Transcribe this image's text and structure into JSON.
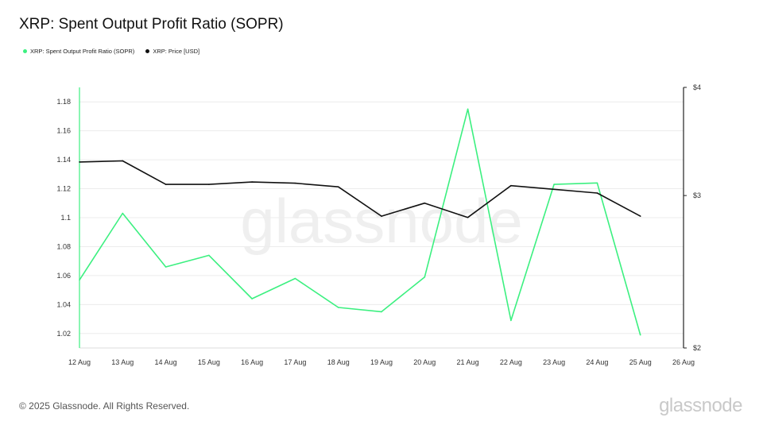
{
  "title": "XRP: Spent Output Profit Ratio (SOPR)",
  "footer": "© 2025 Glassnode. All Rights Reserved.",
  "brand": "glassnode",
  "watermark": "glassnode",
  "colors": {
    "sopr": "#3cf080",
    "price": "#111111",
    "grid": "#ececec"
  },
  "chart_data": {
    "type": "line",
    "x": [
      "12 Aug",
      "13 Aug",
      "14 Aug",
      "15 Aug",
      "16 Aug",
      "17 Aug",
      "18 Aug",
      "19 Aug",
      "20 Aug",
      "21 Aug",
      "22 Aug",
      "23 Aug",
      "24 Aug",
      "25 Aug",
      "26 Aug"
    ],
    "series": [
      {
        "name": "XRP: Spent Output Profit Ratio (SOPR)",
        "axis": "left",
        "color": "#3cf080",
        "values": [
          1.057,
          1.103,
          1.066,
          1.074,
          1.044,
          1.058,
          1.038,
          1.035,
          1.059,
          1.175,
          1.029,
          1.123,
          1.124,
          1.019,
          null
        ]
      },
      {
        "name": "XRP: Price [USD]",
        "axis": "right",
        "color": "#111111",
        "values": [
          3.28,
          3.29,
          3.09,
          3.09,
          3.11,
          3.1,
          3.07,
          2.84,
          2.94,
          2.83,
          3.08,
          3.05,
          3.02,
          2.84,
          null
        ]
      }
    ],
    "y_left": {
      "ticks": [
        "1.02",
        "1.04",
        "1.06",
        "1.08",
        "1.1",
        "1.12",
        "1.14",
        "1.16",
        "1.18"
      ],
      "min": 1.01,
      "max": 1.19
    },
    "y_right": {
      "ticks": [
        "$2",
        "$3",
        "$4"
      ],
      "min": 2,
      "max": 4,
      "scale": "log"
    },
    "legend_position": "top-left",
    "grid": "horizontal"
  }
}
